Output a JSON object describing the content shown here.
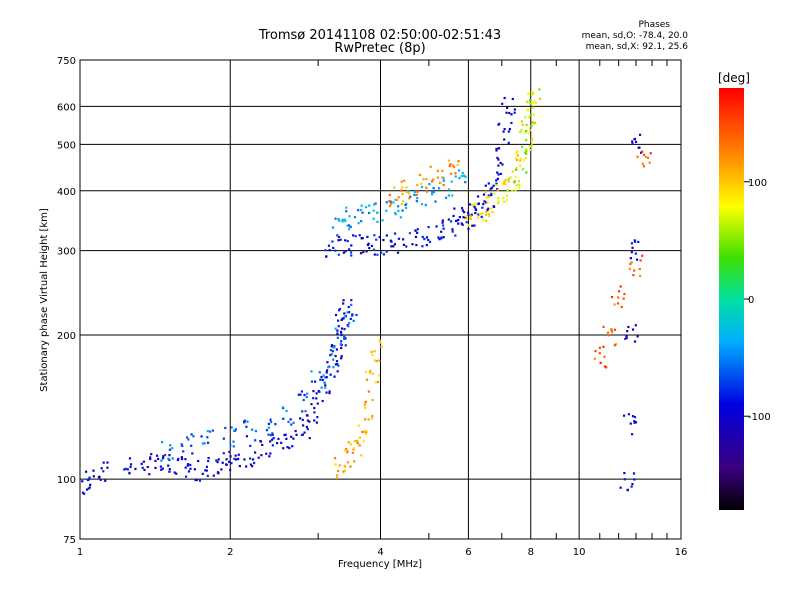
{
  "header": {
    "title_line1": "Tromsø 20141108 02:50:00-02:51:43",
    "title_line2": "RwPretec (8p)"
  },
  "phases": {
    "title": "Phases",
    "line1": "mean, sd,O: -78.4, 20.0",
    "line2": "mean, sd,X:  92.1, 25.6"
  },
  "colorbar": {
    "unit": "[deg]",
    "ticks": [
      {
        "label": "100",
        "value": 100
      },
      {
        "label": "0",
        "value": 0
      },
      {
        "label": "-100",
        "value": -100
      }
    ],
    "range": [
      -180,
      180
    ]
  },
  "chart_data": {
    "type": "scatter",
    "title": "Tromsø 20141108 02:50:00-02:51:43",
    "subtitle": "RwPretec (8p)",
    "xlabel": "Frequency [MHz]",
    "ylabel": "Stationary phase Virtual Height [km]",
    "xscale": "log",
    "yscale": "log",
    "xlim": [
      1,
      16
    ],
    "ylim": [
      75,
      750
    ],
    "x_ticks": [
      {
        "label": "1",
        "value": 1
      },
      {
        "label": "2",
        "value": 2
      },
      {
        "label": "4",
        "value": 4
      },
      {
        "label": "6",
        "value": 6
      },
      {
        "label": "8",
        "value": 8
      },
      {
        "label": "10",
        "value": 10
      },
      {
        "label": "16",
        "value": 16
      }
    ],
    "y_ticks": [
      {
        "label": "75",
        "value": 75
      },
      {
        "label": "100",
        "value": 100
      },
      {
        "label": "200",
        "value": 200
      },
      {
        "label": "300",
        "value": 300
      },
      {
        "label": "400",
        "value": 400
      },
      {
        "label": "500",
        "value": 500
      },
      {
        "label": "600",
        "value": 600
      },
      {
        "label": "750",
        "value": 750
      }
    ],
    "grid": true,
    "color_variable": "phase [deg]",
    "series": [
      {
        "x": [
          1.0,
          1.05,
          1.12,
          1.25,
          1.35,
          1.45,
          1.55,
          1.65,
          1.75,
          1.85,
          1.95,
          2.05,
          2.2,
          2.35,
          2.5,
          2.65,
          2.8,
          2.9,
          3.0,
          3.1,
          3.2,
          3.25,
          3.3,
          3.35,
          3.4
        ],
        "y": [
          97,
          100,
          103,
          105,
          108,
          110,
          108,
          106,
          104,
          106,
          108,
          110,
          112,
          115,
          118,
          122,
          128,
          135,
          145,
          158,
          170,
          185,
          200,
          215,
          230
        ],
        "phase": -100
      },
      {
        "x": [
          1.5,
          1.65,
          1.8,
          2.0,
          2.2,
          2.4,
          2.6,
          2.8,
          3.0,
          3.2,
          3.35,
          3.5
        ],
        "y": [
          115,
          118,
          120,
          122,
          126,
          130,
          136,
          145,
          160,
          180,
          200,
          220
        ],
        "phase": -60
      },
      {
        "x": [
          3.3,
          3.45,
          3.55,
          3.65,
          3.75,
          3.85,
          3.95
        ],
        "y": [
          105,
          110,
          115,
          125,
          140,
          160,
          185
        ],
        "phase": 110
      },
      {
        "x": [
          3.2,
          3.4,
          3.6,
          3.8,
          4.0,
          4.3,
          4.6,
          4.9,
          5.2,
          5.5,
          5.8
        ],
        "y": [
          305,
          306,
          307,
          308,
          310,
          312,
          316,
          320,
          328,
          340,
          355
        ],
        "phase": -90
      },
      {
        "x": [
          3.3,
          3.5,
          3.7,
          4.0,
          4.3,
          4.6,
          5.0,
          5.4,
          5.8
        ],
        "y": [
          340,
          350,
          355,
          362,
          370,
          380,
          392,
          405,
          420
        ],
        "phase": -40
      },
      {
        "x": [
          4.3,
          4.5,
          4.8,
          5.2,
          5.6
        ],
        "y": [
          390,
          400,
          410,
          430,
          450
        ],
        "phase": 120
      },
      {
        "x": [
          6.0,
          6.2,
          6.4,
          6.6,
          6.8,
          7.0,
          7.1,
          7.2
        ],
        "y": [
          350,
          360,
          372,
          390,
          420,
          470,
          530,
          600
        ],
        "phase": -100
      },
      {
        "x": [
          6.1,
          6.4,
          6.7,
          7.0,
          7.3,
          7.6,
          7.9,
          8.1
        ],
        "y": [
          355,
          365,
          380,
          400,
          430,
          470,
          530,
          620
        ],
        "phase": 90
      },
      {
        "x": [
          7.4,
          7.6,
          7.8,
          8.0,
          8.1
        ],
        "y": [
          420,
          460,
          510,
          570,
          640
        ],
        "phase": 60
      },
      {
        "x": [
          12.5,
          12.6,
          12.7,
          12.8,
          12.9
        ],
        "y": [
          100,
          130,
          200,
          300,
          500
        ],
        "phase": -100
      },
      {
        "x": [
          11.0,
          11.5,
          12.0,
          13.0,
          13.5
        ],
        "y": [
          180,
          200,
          240,
          280,
          460
        ],
        "phase": 140
      }
    ]
  }
}
